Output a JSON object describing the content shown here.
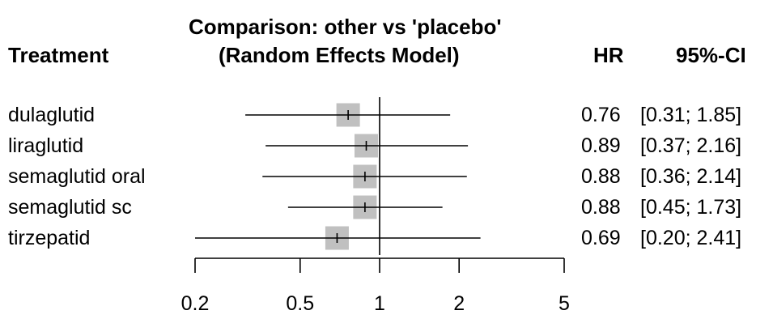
{
  "headers": {
    "treatment": "Treatment",
    "title_line1": "Comparison: other vs 'placebo'",
    "title_line2": "(Random Effects Model)",
    "hr": "HR",
    "ci": "95%-CI"
  },
  "chart_data": {
    "type": "forest",
    "title": "Comparison: other vs 'placebo' (Random Effects Model)",
    "xscale": "log",
    "reference_line": 1,
    "xlim": [
      0.2,
      5
    ],
    "xticks": [
      0.2,
      0.5,
      1,
      2,
      5
    ],
    "xtick_labels": [
      "0.2",
      "0.5",
      "1",
      "2",
      "5"
    ],
    "rows": [
      {
        "label": "dulaglutid",
        "hr": 0.76,
        "lower": 0.31,
        "upper": 1.85,
        "hr_text": "0.76",
        "ci_text": "[0.31; 1.85]"
      },
      {
        "label": "liraglutid",
        "hr": 0.89,
        "lower": 0.37,
        "upper": 2.16,
        "hr_text": "0.89",
        "ci_text": "[0.37; 2.16]"
      },
      {
        "label": "semaglutid oral",
        "hr": 0.88,
        "lower": 0.36,
        "upper": 2.14,
        "hr_text": "0.88",
        "ci_text": "[0.36; 2.14]"
      },
      {
        "label": "semaglutid sc",
        "hr": 0.88,
        "lower": 0.45,
        "upper": 1.73,
        "hr_text": "0.88",
        "ci_text": "[0.45; 1.73]"
      },
      {
        "label": "tirzepatid",
        "hr": 0.69,
        "lower": 0.2,
        "upper": 2.41,
        "hr_text": "0.69",
        "ci_text": "[0.20; 2.41]"
      }
    ],
    "box_color": "#c0c0c0",
    "line_color": "#000000"
  }
}
